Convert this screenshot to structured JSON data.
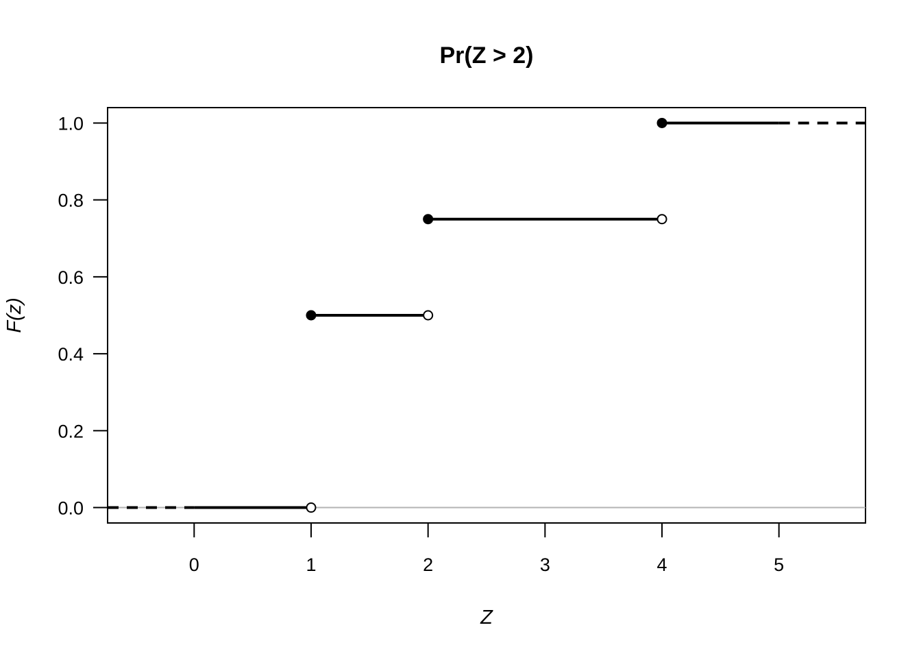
{
  "chart_data": {
    "type": "line",
    "title": "Pr(Z > 2)",
    "xlabel": "Z",
    "ylabel": "F(z)",
    "xlim": [
      -0.74,
      5.74
    ],
    "ylim": [
      -0.04,
      1.04
    ],
    "x_ticks": [
      0,
      1,
      2,
      3,
      4,
      5
    ],
    "x_tick_labels": [
      "0",
      "1",
      "2",
      "3",
      "4",
      "5"
    ],
    "y_ticks": [
      0.0,
      0.2,
      0.4,
      0.6,
      0.8,
      1.0
    ],
    "y_tick_labels": [
      "0.0",
      "0.2",
      "0.4",
      "0.6",
      "0.8",
      "1.0"
    ],
    "grid": false,
    "reference_line": {
      "y": 0,
      "color": "#b3b3b3"
    },
    "colors": {
      "line": "#000000",
      "reference": "#b3b3b3"
    },
    "steps": [
      {
        "x_start": -0.74,
        "x_end": 0,
        "y": 0.0,
        "style": "dashed",
        "start_point": "none",
        "end_point": "none"
      },
      {
        "x_start": 0,
        "x_end": 1,
        "y": 0.0,
        "style": "solid",
        "start_point": "none",
        "end_point": "open"
      },
      {
        "x_start": 1,
        "x_end": 2,
        "y": 0.5,
        "style": "solid",
        "start_point": "closed",
        "end_point": "open"
      },
      {
        "x_start": 2,
        "x_end": 4,
        "y": 0.75,
        "style": "solid",
        "start_point": "closed",
        "end_point": "open"
      },
      {
        "x_start": 4,
        "x_end": 5,
        "y": 1.0,
        "style": "solid",
        "start_point": "closed",
        "end_point": "none"
      },
      {
        "x_start": 5,
        "x_end": 5.74,
        "y": 1.0,
        "style": "dashed",
        "start_point": "none",
        "end_point": "none"
      }
    ]
  }
}
